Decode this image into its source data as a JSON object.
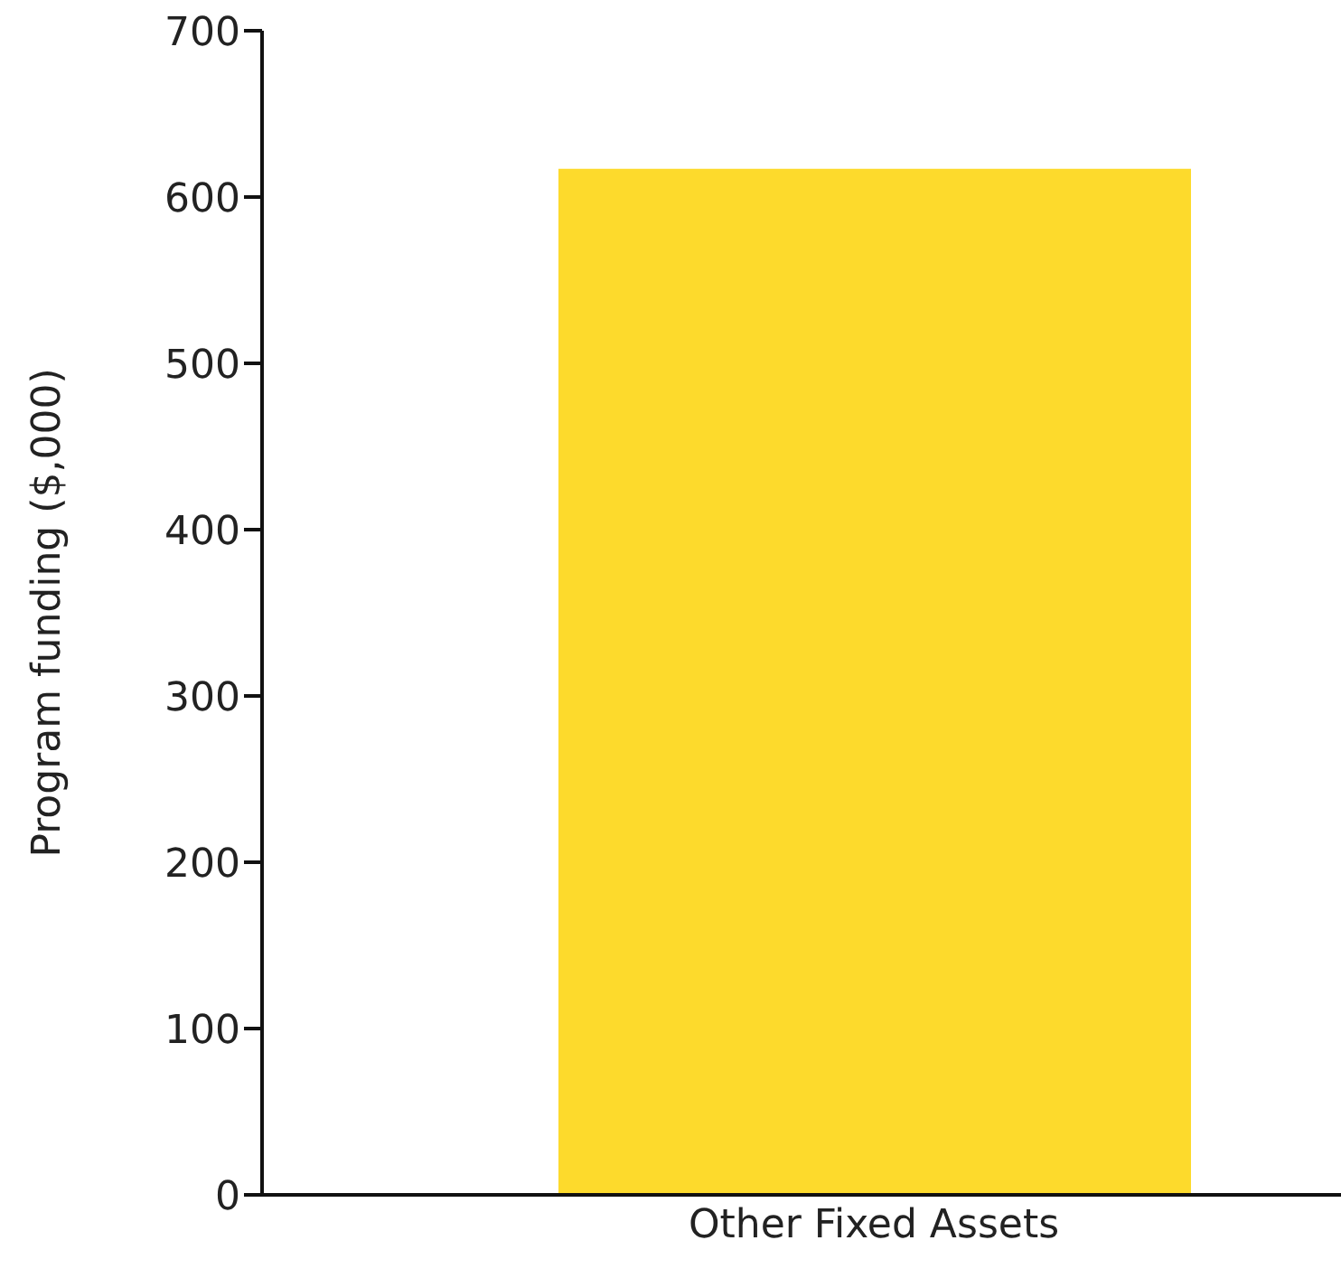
{
  "chart_data": {
    "type": "bar",
    "ylabel": "Program funding ($,000)",
    "categories": [
      "Other Fixed Assets"
    ],
    "values": [
      617
    ],
    "color": "#fdda2c",
    "ylim": [
      0,
      700
    ],
    "yticks": [
      0,
      100,
      200,
      300,
      400,
      500,
      600,
      700
    ],
    "grid": false
  }
}
